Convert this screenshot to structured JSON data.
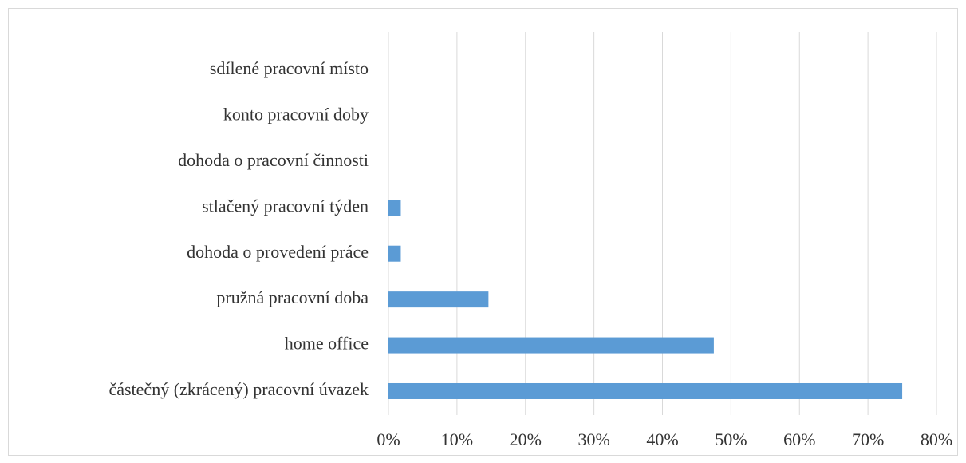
{
  "chart_data": {
    "type": "hbar",
    "categories": [
      "sdílené pracovní místo",
      "konto pracovní doby",
      "dohoda o pracovní činnosti",
      "stlačený pracovní týden",
      "dohoda o provedení práce",
      "pružná pracovní doba",
      "home office",
      "částečný (zkrácený) pracovní úvazek"
    ],
    "values": [
      0,
      0,
      0,
      1.8,
      1.8,
      14.6,
      47.5,
      75
    ],
    "color": "#5b9bd5",
    "xlim": [
      0,
      80
    ],
    "xticks": [
      {
        "value": 0,
        "label": "0%"
      },
      {
        "value": 10,
        "label": "10%"
      },
      {
        "value": 20,
        "label": "20%"
      },
      {
        "value": 30,
        "label": "30%"
      },
      {
        "value": 40,
        "label": "40%"
      },
      {
        "value": 50,
        "label": "50%"
      },
      {
        "value": 60,
        "label": "60%"
      },
      {
        "value": 70,
        "label": "70%"
      },
      {
        "value": 80,
        "label": "80%"
      }
    ],
    "grid": true
  }
}
